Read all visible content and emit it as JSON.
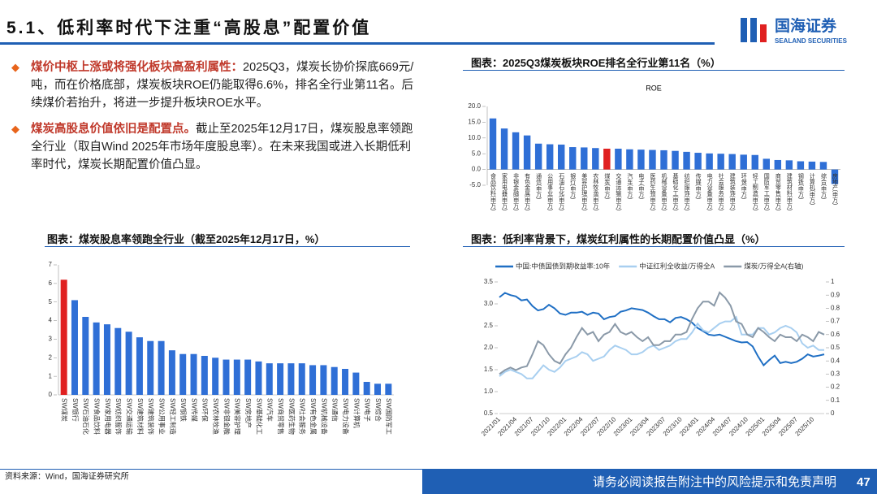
{
  "header": {
    "title": "5.1、低利率时代下注重“高股息”配置价值",
    "logo": "国海证券",
    "logo_en": "SEALAND SECURITIES"
  },
  "bullets": [
    {
      "lead": "煤价中枢上涨或将强化板块高盈利属性：",
      "text": "2025Q3，煤炭长协价探底669元/吨，而在价格底部，煤炭板块ROE仍能取得6.6%，排名全行业第11名。后续煤价若抬升，将进一步提升板块ROE水平。"
    },
    {
      "lead": "煤炭高股息价值依旧是配置点。",
      "text": "截止至2025年12月17日，煤炭股息率领跑全行业（取自Wind 2025年市场年度股息率）。在未来我国或进入长期低利率时代，煤炭长期配置价值凸显。"
    }
  ],
  "chart_data": [
    {
      "type": "bar",
      "caption": "图表：2025Q3煤炭板块ROE排名全行业第11名（%）",
      "title": "ROE",
      "categories": [
        "食品饮料(申万)",
        "家用电器(申万)",
        "非银金融(申万)",
        "有色金属(申万)",
        "通信(申万)",
        "公用事业(申万)",
        "石油石化(申万)",
        "银行(申万)",
        "美容护理(申万)",
        "农林牧渔(申万)",
        "煤炭(申万)",
        "交通运输(申万)",
        "汽车(申万)",
        "电子(申万)",
        "医药生物(申万)",
        "机械设备(申万)",
        "基础化工(申万)",
        "纺织服饰(申万)",
        "传媒(申万)",
        "电力设备(申万)",
        "社会服务(申万)",
        "建筑装饰(申万)",
        "环保(申万)",
        "轻工制造(申万)",
        "国防军工(申万)",
        "商贸零售(申万)",
        "建筑材料(申万)",
        "钢铁(申万)",
        "计算机(申万)",
        "综合(申万)",
        "房地产(申万)"
      ],
      "values": [
        16.2,
        13.0,
        11.8,
        10.8,
        8.2,
        8.0,
        7.9,
        7.1,
        7.0,
        6.8,
        6.6,
        6.6,
        6.4,
        6.3,
        6.2,
        6.1,
        5.9,
        5.6,
        5.3,
        5.1,
        5.0,
        4.9,
        4.7,
        4.6,
        3.4,
        3.0,
        2.9,
        2.6,
        2.5,
        2.4,
        -4.6
      ],
      "colors": [
        "#2f6fd6",
        "#2f6fd6",
        "#2f6fd6",
        "#2f6fd6",
        "#2f6fd6",
        "#2f6fd6",
        "#2f6fd6",
        "#2f6fd6",
        "#2f6fd6",
        "#2f6fd6",
        "#e02020",
        "#2f6fd6",
        "#2f6fd6",
        "#2f6fd6",
        "#2f6fd6",
        "#2f6fd6",
        "#2f6fd6",
        "#2f6fd6",
        "#2f6fd6",
        "#2f6fd6",
        "#2f6fd6",
        "#2f6fd6",
        "#2f6fd6",
        "#2f6fd6",
        "#2f6fd6",
        "#2f6fd6",
        "#2f6fd6",
        "#2f6fd6",
        "#2f6fd6",
        "#2f6fd6",
        "#2f6fd6"
      ],
      "ylim": [
        -5,
        20
      ],
      "yticks": [
        {
          "value": -5,
          "label": "-5.0"
        },
        {
          "value": 0,
          "label": "0.0"
        },
        {
          "value": 5,
          "label": "5.0"
        },
        {
          "value": 10,
          "label": "10.0"
        },
        {
          "value": 15,
          "label": "15.0"
        },
        {
          "value": 20,
          "label": "20.0"
        }
      ],
      "grid": false
    },
    {
      "type": "bar",
      "caption": "图表：煤炭股息率领跑全行业（截至2025年12月17日，%）",
      "categories": [
        "SW煤炭",
        "SW银行",
        "SW石油石化",
        "SW食品饮料",
        "SW家用电器",
        "SW纺织服饰",
        "SW交通运输",
        "SW建筑材料",
        "SW建筑装饰",
        "SW公用事业",
        "SW轻工制造",
        "SW钢铁",
        "SW传媒",
        "SW环保",
        "SW农林牧渔",
        "SW非银金融",
        "SW美容护理",
        "SW房地产",
        "SW基础化工",
        "SW汽车",
        "SW商贸零售",
        "SW医药生物",
        "SW社会服务",
        "SW有色金属",
        "SW机械设备",
        "SW通信",
        "SW电力设备",
        "SW计算机",
        "SW电子",
        "SW综合",
        "SW国防军工"
      ],
      "values": [
        6.2,
        5.1,
        4.2,
        3.9,
        3.8,
        3.6,
        3.4,
        3.1,
        2.9,
        2.9,
        2.4,
        2.2,
        2.2,
        2.1,
        2.0,
        1.9,
        1.9,
        1.9,
        1.8,
        1.7,
        1.7,
        1.7,
        1.7,
        1.6,
        1.6,
        1.5,
        1.4,
        1.2,
        0.7,
        0.6,
        0.6
      ],
      "colors": [
        "#e02020",
        "#2f6fd6",
        "#2f6fd6",
        "#2f6fd6",
        "#2f6fd6",
        "#2f6fd6",
        "#2f6fd6",
        "#2f6fd6",
        "#2f6fd6",
        "#2f6fd6",
        "#2f6fd6",
        "#2f6fd6",
        "#2f6fd6",
        "#2f6fd6",
        "#2f6fd6",
        "#2f6fd6",
        "#2f6fd6",
        "#2f6fd6",
        "#2f6fd6",
        "#2f6fd6",
        "#2f6fd6",
        "#2f6fd6",
        "#2f6fd6",
        "#2f6fd6",
        "#2f6fd6",
        "#2f6fd6",
        "#2f6fd6",
        "#2f6fd6",
        "#2f6fd6",
        "#2f6fd6",
        "#2f6fd6"
      ],
      "ylim": [
        0,
        7
      ],
      "yticks": [
        0,
        1,
        2,
        3,
        4,
        5,
        6,
        7
      ],
      "grid": false
    },
    {
      "type": "line",
      "caption": "图表：低利率背景下，煤炭红利属性的长期配置价值凸显（%）",
      "x": [
        "2021/01",
        "2021/02",
        "2021/03",
        "2021/04",
        "2021/05",
        "2021/06",
        "2021/07",
        "2021/08",
        "2021/09",
        "2021/10",
        "2021/11",
        "2021/12",
        "2022/01",
        "2022/02",
        "2022/03",
        "2022/04",
        "2022/05",
        "2022/06",
        "2022/07",
        "2022/08",
        "2022/09",
        "2022/10",
        "2022/11",
        "2022/12",
        "2023/01",
        "2023/02",
        "2023/03",
        "2023/04",
        "2023/05",
        "2023/06",
        "2023/07",
        "2023/08",
        "2023/09",
        "2023/10",
        "2023/11",
        "2023/12",
        "2024/01",
        "2024/02",
        "2024/03",
        "2024/04",
        "2024/05",
        "2024/06",
        "2024/07",
        "2024/08",
        "2024/09",
        "2024/10",
        "2024/11",
        "2024/12",
        "2025/01",
        "2025/02",
        "2025/03",
        "2025/04",
        "2025/05",
        "2025/06",
        "2025/07",
        "2025/08",
        "2025/09",
        "2025/10",
        "2025/11",
        "2025/12"
      ],
      "series": [
        {
          "name": "中国:中债国债到期收益率:10年",
          "color": "#1f6fc4",
          "values": [
            3.15,
            3.25,
            3.2,
            3.17,
            3.08,
            3.1,
            2.95,
            2.85,
            2.88,
            2.98,
            2.9,
            2.78,
            2.75,
            2.8,
            2.8,
            2.82,
            2.75,
            2.8,
            2.78,
            2.65,
            2.7,
            2.72,
            2.82,
            2.85,
            2.9,
            2.88,
            2.86,
            2.8,
            2.72,
            2.65,
            2.65,
            2.58,
            2.68,
            2.7,
            2.65,
            2.57,
            2.45,
            2.38,
            2.3,
            2.28,
            2.3,
            2.25,
            2.2,
            2.15,
            2.12,
            2.13,
            2.03,
            1.8,
            1.6,
            1.72,
            1.82,
            1.65,
            1.68,
            1.65,
            1.68,
            1.75,
            1.85,
            1.8,
            1.82,
            1.85
          ]
        },
        {
          "name": "中证红利全收益/万得全A",
          "color": "#a8cff0",
          "values": [
            1.35,
            1.45,
            1.5,
            1.45,
            1.4,
            1.3,
            1.3,
            1.45,
            1.6,
            1.5,
            1.45,
            1.55,
            1.7,
            1.75,
            1.8,
            1.9,
            1.85,
            1.7,
            1.75,
            1.8,
            1.95,
            2.05,
            2.0,
            1.95,
            1.85,
            1.85,
            1.9,
            2.0,
            2.05,
            1.95,
            2.0,
            2.05,
            2.15,
            2.2,
            2.2,
            2.35,
            2.55,
            2.4,
            2.35,
            2.45,
            2.55,
            2.6,
            2.6,
            2.7,
            2.3,
            2.3,
            2.3,
            2.45,
            2.45,
            2.3,
            2.35,
            2.45,
            2.5,
            2.45,
            2.35,
            2.1,
            2.0,
            2.05,
            1.95,
            1.95
          ]
        },
        {
          "name": "煤炭/万得全A(右轴)",
          "color": "#8a99a8",
          "axis": "y2",
          "values": [
            0.3,
            0.33,
            0.35,
            0.33,
            0.35,
            0.36,
            0.45,
            0.55,
            0.52,
            0.45,
            0.4,
            0.38,
            0.45,
            0.5,
            0.58,
            0.65,
            0.6,
            0.62,
            0.55,
            0.6,
            0.62,
            0.68,
            0.62,
            0.6,
            0.62,
            0.58,
            0.55,
            0.58,
            0.52,
            0.52,
            0.55,
            0.55,
            0.6,
            0.6,
            0.62,
            0.72,
            0.8,
            0.85,
            0.85,
            0.82,
            0.92,
            0.88,
            0.82,
            0.7,
            0.68,
            0.6,
            0.58,
            0.65,
            0.62,
            0.58,
            0.55,
            0.6,
            0.58,
            0.58,
            0.55,
            0.6,
            0.58,
            0.55,
            0.62,
            0.6
          ]
        }
      ],
      "ylim": [
        0.5,
        3.5
      ],
      "yticks": [
        0.5,
        {
          "value": 1,
          "label": "1.0"
        },
        1.5,
        {
          "value": 2,
          "label": "2.0"
        },
        2.5,
        {
          "value": 3,
          "label": "3.0"
        },
        3.5
      ],
      "y2lim": [
        0,
        1
      ],
      "y2ticks": [
        0,
        0.1,
        0.2,
        0.3,
        0.4,
        0.5,
        0.6,
        0.7,
        0.8,
        0.9,
        1
      ],
      "legend": "top"
    }
  ],
  "footer": {
    "source": "资料来源：Wind，国海证券研究所",
    "disclaimer": "请务必阅读报告附注中的风险提示和免责声明",
    "page": 47
  }
}
